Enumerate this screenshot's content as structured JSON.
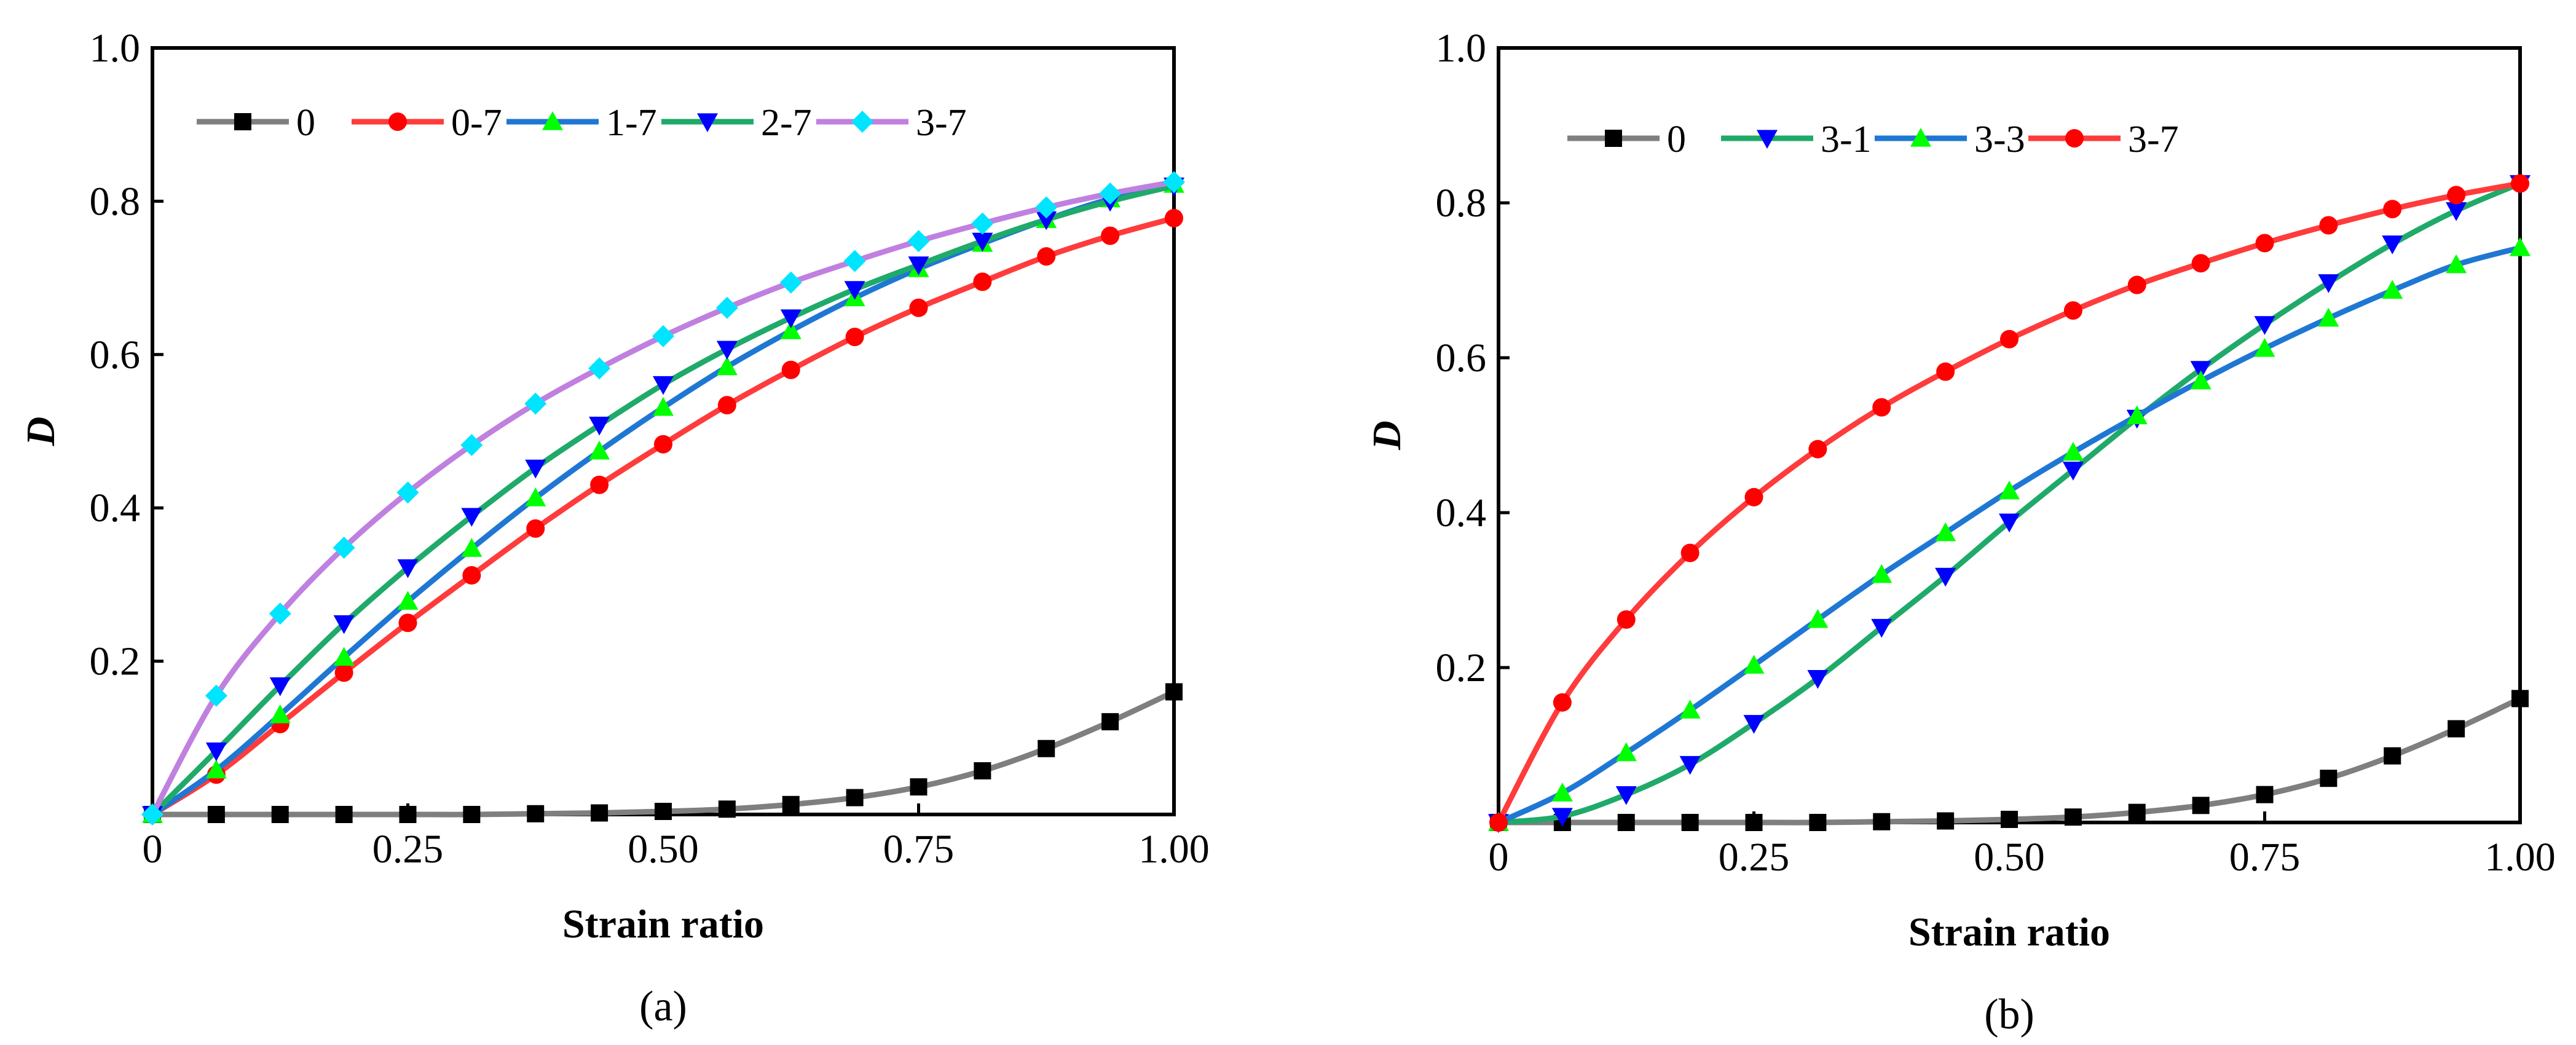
{
  "chart_data": [
    {
      "type": "line",
      "panel_label": "(a)",
      "xlabel": "Strain ratio",
      "ylabel": "D",
      "xlim": [
        0,
        1
      ],
      "ylim": [
        0,
        1
      ],
      "xticks": [
        0,
        0.25,
        0.5,
        0.75,
        1.0
      ],
      "xtick_labels": [
        "0",
        "0.25",
        "0.50",
        "0.75",
        "1.00"
      ],
      "yticks": [
        0.2,
        0.4,
        0.6,
        0.8,
        1.0
      ],
      "ytick_labels": [
        "0.2",
        "0.4",
        "0.6",
        "0.8",
        "1.0"
      ],
      "legend_position": "top-left",
      "x": [
        0,
        0.0625,
        0.125,
        0.1875,
        0.25,
        0.3125,
        0.375,
        0.4375,
        0.5,
        0.5625,
        0.625,
        0.6875,
        0.75,
        0.8125,
        0.875,
        0.9375,
        1.0
      ],
      "series": [
        {
          "name": "0",
          "color": "#7f7f7f",
          "marker": "square",
          "marker_color": "#000000",
          "values": [
            0,
            0.0,
            0.0,
            0.0,
            0.0,
            0.0,
            0.001,
            0.002,
            0.004,
            0.007,
            0.013,
            0.022,
            0.036,
            0.057,
            0.086,
            0.121,
            0.16
          ]
        },
        {
          "name": "0-7",
          "color": "#ff3b3b",
          "marker": "circle",
          "marker_color": "#ff0000",
          "values": [
            0,
            0.052,
            0.118,
            0.185,
            0.25,
            0.312,
            0.373,
            0.43,
            0.483,
            0.534,
            0.58,
            0.623,
            0.661,
            0.695,
            0.728,
            0.755,
            0.778
          ]
        },
        {
          "name": "1-7",
          "color": "#1f77d4",
          "marker": "triangle-up",
          "marker_color": "#00ff00",
          "values": [
            0,
            0.058,
            0.13,
            0.205,
            0.278,
            0.347,
            0.413,
            0.474,
            0.531,
            0.584,
            0.631,
            0.674,
            0.712,
            0.745,
            0.776,
            0.803,
            0.822
          ]
        },
        {
          "name": "2-7",
          "color": "#1faa6a",
          "marker": "triangle-down",
          "marker_color": "#0000ff",
          "values": [
            0,
            0.083,
            0.168,
            0.249,
            0.322,
            0.389,
            0.452,
            0.508,
            0.561,
            0.607,
            0.648,
            0.685,
            0.717,
            0.748,
            0.776,
            0.8,
            0.82
          ]
        },
        {
          "name": "3-7",
          "color": "#c080e0",
          "marker": "diamond",
          "marker_color": "#00e5ff",
          "values": [
            0,
            0.155,
            0.262,
            0.348,
            0.42,
            0.482,
            0.536,
            0.582,
            0.624,
            0.661,
            0.694,
            0.722,
            0.748,
            0.771,
            0.792,
            0.81,
            0.825
          ]
        }
      ]
    },
    {
      "type": "line",
      "panel_label": "(b)",
      "xlabel": "Strain ratio",
      "ylabel": "D",
      "xlim": [
        0,
        1
      ],
      "ylim": [
        0,
        1
      ],
      "xticks": [
        0,
        0.25,
        0.5,
        0.75,
        1.0
      ],
      "xtick_labels": [
        "0",
        "0.25",
        "0.50",
        "0.75",
        "1.00"
      ],
      "yticks": [
        0.2,
        0.4,
        0.6,
        0.8,
        1.0
      ],
      "ytick_labels": [
        "0.2",
        "0.4",
        "0.6",
        "0.8",
        "1.0"
      ],
      "legend_position": "top-left",
      "x": [
        0,
        0.0625,
        0.125,
        0.1875,
        0.25,
        0.3125,
        0.375,
        0.4375,
        0.5,
        0.5625,
        0.625,
        0.6875,
        0.75,
        0.8125,
        0.875,
        0.9375,
        1.0
      ],
      "series": [
        {
          "name": "0",
          "color": "#7f7f7f",
          "marker": "square",
          "marker_color": "#000000",
          "values": [
            0,
            0.0,
            0.0,
            0.0,
            0.0,
            0.0,
            0.001,
            0.002,
            0.004,
            0.007,
            0.013,
            0.022,
            0.036,
            0.057,
            0.086,
            0.121,
            0.16
          ]
        },
        {
          "name": "3-1",
          "color": "#1faa6a",
          "marker": "triangle-down",
          "marker_color": "#0000ff",
          "values": [
            0,
            0.008,
            0.036,
            0.075,
            0.128,
            0.186,
            0.252,
            0.318,
            0.388,
            0.455,
            0.522,
            0.585,
            0.643,
            0.697,
            0.747,
            0.79,
            0.825
          ]
        },
        {
          "name": "3-3",
          "color": "#1f77d4",
          "marker": "triangle-up",
          "marker_color": "#00ff00",
          "values": [
            0,
            0.038,
            0.09,
            0.145,
            0.203,
            0.262,
            0.32,
            0.374,
            0.428,
            0.478,
            0.525,
            0.57,
            0.612,
            0.651,
            0.687,
            0.72,
            0.742
          ]
        },
        {
          "name": "3-7",
          "color": "#ff3b3b",
          "marker": "circle",
          "marker_color": "#ff0000",
          "values": [
            0,
            0.155,
            0.262,
            0.348,
            0.42,
            0.482,
            0.536,
            0.582,
            0.624,
            0.661,
            0.694,
            0.722,
            0.748,
            0.771,
            0.792,
            0.81,
            0.825
          ]
        }
      ]
    }
  ]
}
